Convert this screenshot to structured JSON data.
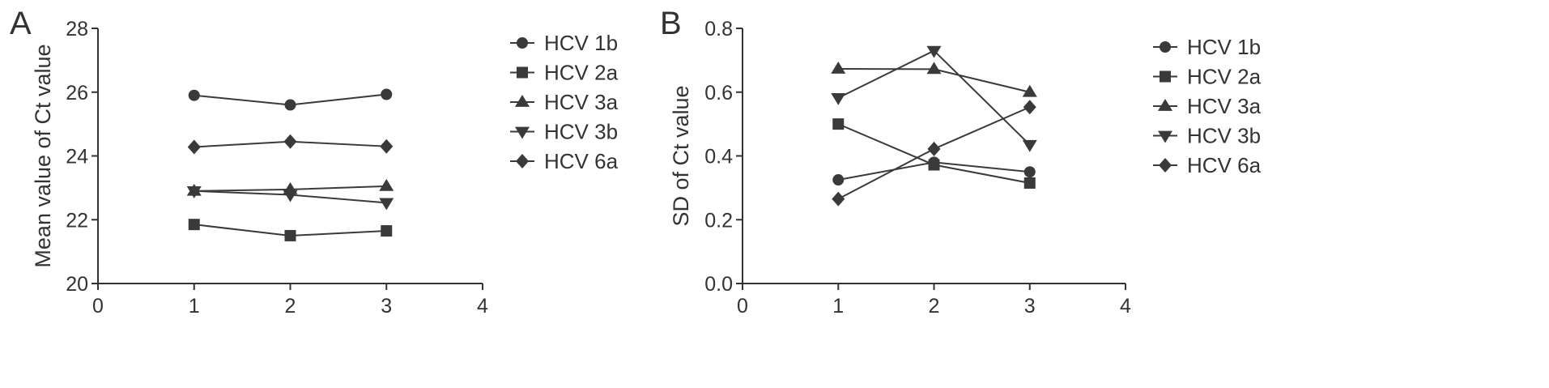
{
  "colors": {
    "axis": "#333333",
    "series": "#3a3a3a",
    "background": "#ffffff"
  },
  "chart_data": [
    {
      "type": "line",
      "panel_label": "A",
      "xlabel": "",
      "ylabel": "Mean value of Ct value",
      "xlim": [
        0,
        4
      ],
      "ylim": [
        20,
        28
      ],
      "x_ticks": [
        0,
        1,
        2,
        3,
        4
      ],
      "x_tick_labels": [
        "0",
        "1",
        "2",
        "3",
        "4"
      ],
      "y_ticks": [
        20,
        22,
        24,
        26,
        28
      ],
      "y_tick_labels": [
        "20",
        "22",
        "24",
        "26",
        "28"
      ],
      "grid": false,
      "legend_position": "right",
      "x": [
        1,
        2,
        3
      ],
      "series": [
        {
          "name": "HCV 1b",
          "marker": "circle",
          "values": [
            25.9,
            25.6,
            25.93
          ]
        },
        {
          "name": "HCV 2a",
          "marker": "square",
          "values": [
            21.85,
            21.5,
            21.65
          ]
        },
        {
          "name": "HCV 3a",
          "marker": "triangle-up",
          "values": [
            22.9,
            22.95,
            23.05
          ]
        },
        {
          "name": "HCV 3b",
          "marker": "triangle-down",
          "values": [
            22.9,
            22.78,
            22.53
          ]
        },
        {
          "name": "HCV 6a",
          "marker": "diamond",
          "values": [
            24.28,
            24.45,
            24.3
          ]
        }
      ]
    },
    {
      "type": "line",
      "panel_label": "B",
      "xlabel": "",
      "ylabel": "SD of Ct value",
      "xlim": [
        0,
        4
      ],
      "ylim": [
        0,
        0.8
      ],
      "x_ticks": [
        0,
        1,
        2,
        3,
        4
      ],
      "x_tick_labels": [
        "0",
        "1",
        "2",
        "3",
        "4"
      ],
      "y_ticks": [
        0,
        0.2,
        0.4,
        0.6,
        0.8
      ],
      "y_tick_labels": [
        "0.0",
        "0.2",
        "0.4",
        "0.6",
        "0.8"
      ],
      "grid": false,
      "legend_position": "right",
      "x": [
        1,
        2,
        3
      ],
      "series": [
        {
          "name": "HCV 1b",
          "marker": "circle",
          "values": [
            0.325,
            0.38,
            0.35
          ]
        },
        {
          "name": "HCV 2a",
          "marker": "square",
          "values": [
            0.5,
            0.372,
            0.315
          ]
        },
        {
          "name": "HCV 3a",
          "marker": "triangle-up",
          "values": [
            0.673,
            0.672,
            0.6
          ]
        },
        {
          "name": "HCV 3b",
          "marker": "triangle-down",
          "values": [
            0.582,
            0.73,
            0.435
          ]
        },
        {
          "name": "HCV 6a",
          "marker": "diamond",
          "values": [
            0.265,
            0.422,
            0.553
          ]
        }
      ]
    }
  ]
}
